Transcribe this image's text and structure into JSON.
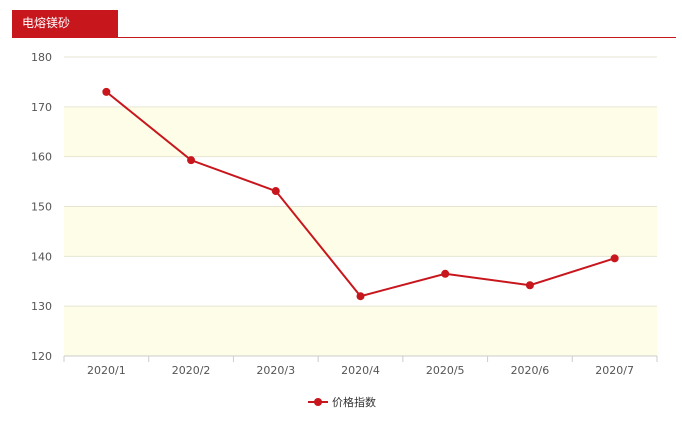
{
  "header": {
    "title": "电熔镁砂"
  },
  "colors": {
    "accent": "#c8161d",
    "band": "#fdfde8",
    "grid": "#e6e6d2",
    "axis": "#cccccc"
  },
  "chart_data": {
    "type": "line",
    "title": "",
    "xlabel": "",
    "ylabel": "",
    "categories": [
      "2020/1",
      "2020/2",
      "2020/3",
      "2020/4",
      "2020/5",
      "2020/6",
      "2020/7"
    ],
    "series": [
      {
        "name": "价格指数",
        "values": [
          173,
          159.3,
          153.1,
          132,
          136.5,
          134.2,
          139.6
        ]
      }
    ],
    "ylim": [
      120,
      180
    ],
    "yticks": [
      "120",
      "130",
      "140",
      "150",
      "160",
      "170",
      "180"
    ],
    "grid": true,
    "legend": "bottom-center"
  }
}
